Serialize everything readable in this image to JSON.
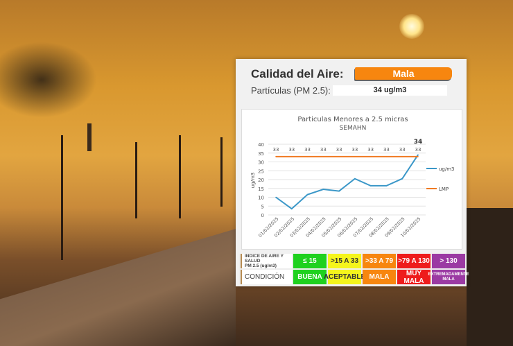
{
  "header": {
    "title": "Calidad del Aire:",
    "status": "Mala",
    "particles_label": "Partículas (PM 2.5):",
    "particles_value": "34 ug/m3"
  },
  "colors": {
    "status": "#f7860f",
    "series": "#3a97c8",
    "limit": "#f07a22"
  },
  "chart_data": {
    "type": "line",
    "title": "Particulas Menores a 2.5 micras",
    "subtitle": "SEMAHN",
    "ylabel": "ug/m3",
    "ylim": [
      0,
      40
    ],
    "yticks": [
      0,
      5,
      10,
      15,
      20,
      25,
      30,
      35,
      40
    ],
    "categories": [
      "01/02/2025",
      "02/02/2025",
      "03/02/2025",
      "04/02/2025",
      "05/02/2025",
      "06/02/2025",
      "07/02/2025",
      "08/02/2025",
      "09/02/2025",
      "10/02/2025"
    ],
    "series": [
      {
        "name": "ug/m3",
        "values": [
          10,
          3.5,
          11.5,
          14.5,
          13.5,
          20.5,
          16.5,
          16.5,
          20.5,
          34
        ],
        "last_label": "34"
      },
      {
        "name": "LMP",
        "values": [
          33,
          33,
          33,
          33,
          33,
          33,
          33,
          33,
          33,
          33
        ],
        "labels": [
          "33",
          "33",
          "33",
          "33",
          "33",
          "33",
          "33",
          "33",
          "33",
          "33"
        ]
      }
    ],
    "legend": "right",
    "grid": true
  },
  "table": {
    "row1_label_a": "INDICE DE AIRE Y SALUD",
    "row1_label_b": "PM 2.5 (ug/m3)",
    "row2_label": "CONDICIÓN",
    "ranges": [
      "≤ 15",
      ">15 A 33",
      ">33 A 79",
      ">79 A 130",
      "> 130"
    ],
    "conditions": [
      "BUENA",
      "ACEPTABLE",
      "MALA",
      "MUY MALA",
      "EXTREMADAMENTE MALA"
    ],
    "colors": [
      "#1fd11f",
      "#f5f51c",
      "#f7860f",
      "#ee1c1c",
      "#9b3aa3"
    ]
  }
}
